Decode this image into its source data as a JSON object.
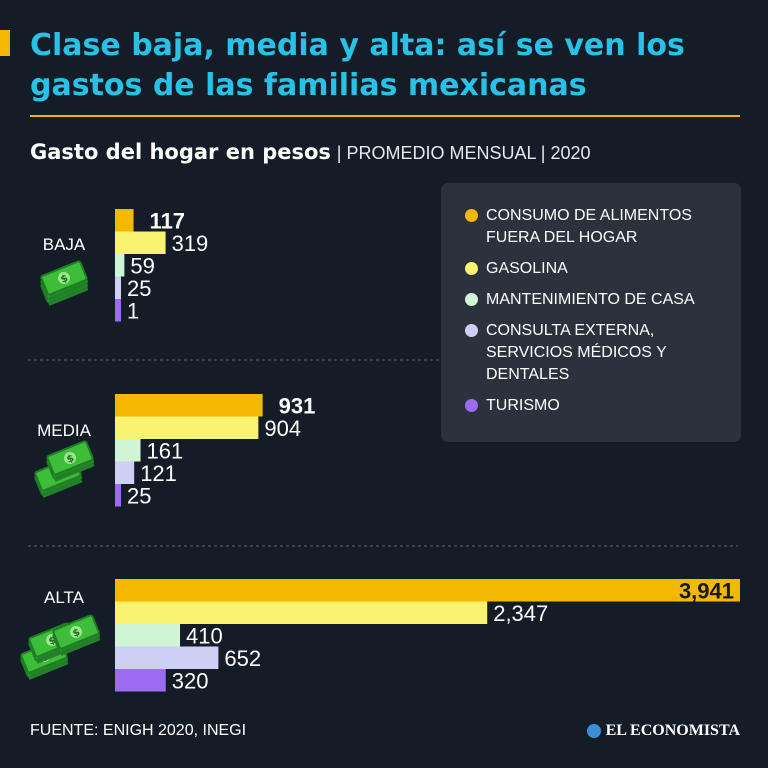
{
  "title": "Clase baja, media y alta: así se ven los gastos de las familias mexicanas",
  "subtitle": {
    "main": "Gasto del hogar en pesos",
    "detail": "| PROMEDIO MENSUAL | 2020"
  },
  "legend": [
    {
      "label": "CONSUMO DE ALIMENTOS FUERA DEL HOGAR",
      "color": "#f5b800"
    },
    {
      "label": "GASOLINA",
      "color": "#faf36f"
    },
    {
      "label": "MANTENIMIENTO DE CASA",
      "color": "#cff5d4"
    },
    {
      "label": "CONSULTA EXTERNA, SERVICIOS MÉDICOS Y DENTALES",
      "color": "#cdd0f5"
    },
    {
      "label": "TURISMO",
      "color": "#9b6cf2"
    }
  ],
  "chart_data": {
    "type": "bar",
    "orientation": "horizontal",
    "title": "Gasto del hogar en pesos",
    "unit": "pesos, promedio mensual, 2020",
    "groups": [
      "BAJA",
      "MEDIA",
      "ALTA"
    ],
    "series": [
      {
        "name": "CONSUMO DE ALIMENTOS FUERA DEL HOGAR",
        "color": "#f5b800",
        "values": [
          117,
          931,
          3941
        ],
        "labels": [
          "117",
          "931",
          "3,941"
        ],
        "highlight": true
      },
      {
        "name": "GASOLINA",
        "color": "#faf36f",
        "values": [
          319,
          904,
          2347
        ],
        "labels": [
          "319",
          "904",
          "2,347"
        ]
      },
      {
        "name": "MANTENIMIENTO DE CASA",
        "color": "#cff5d4",
        "values": [
          59,
          161,
          410
        ],
        "labels": [
          "59",
          "161",
          "410"
        ]
      },
      {
        "name": "CONSULTA EXTERNA, SERVICIOS MÉDICOS Y DENTALES",
        "color": "#cdd0f5",
        "values": [
          25,
          121,
          652
        ],
        "labels": [
          "25",
          "121",
          "652"
        ]
      },
      {
        "name": "TURISMO",
        "color": "#9b6cf2",
        "values": [
          1,
          25,
          320
        ],
        "labels": [
          "1",
          "25",
          "320"
        ]
      }
    ],
    "xlim": [
      0,
      3941
    ]
  },
  "footer": {
    "source": "FUENTE: ENIGH 2020, INEGI",
    "brand": "EL ECONOMISTA"
  }
}
